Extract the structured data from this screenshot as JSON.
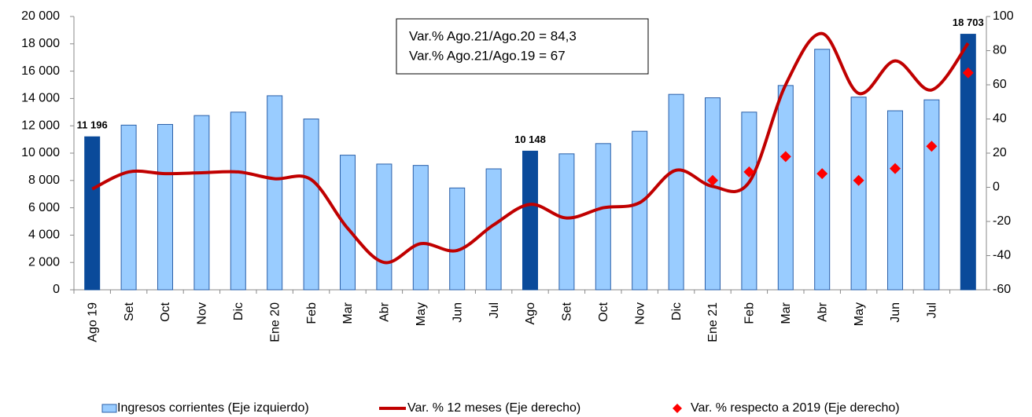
{
  "chart_data": {
    "type": "bar",
    "annotations": [
      "Var.% Ago.21/Ago.20 = 84,3",
      "Var.% Ago.21/Ago.19 = 67"
    ],
    "categories": [
      "Ago 19",
      "Set",
      "Oct",
      "Nov",
      "Dic",
      "Ene 20",
      "Feb",
      "Mar",
      "Abr",
      "May",
      "Jun",
      "Jul",
      "Ago",
      "Set",
      "Oct",
      "Nov",
      "Dic",
      "Ene 21",
      "Feb",
      "Mar",
      "Abr",
      "May",
      "Jun",
      "Jul",
      null
    ],
    "ylim": [
      0,
      20000
    ],
    "yticks": [
      {
        "value": 0,
        "label": "0"
      },
      {
        "value": 2000,
        "label": "2 000"
      },
      {
        "value": 4000,
        "label": "4 000"
      },
      {
        "value": 6000,
        "label": "6 000"
      },
      {
        "value": 8000,
        "label": "8 000"
      },
      {
        "value": 10000,
        "label": "10 000"
      },
      {
        "value": 12000,
        "label": "12 000"
      },
      {
        "value": 14000,
        "label": "14 000"
      },
      {
        "value": 16000,
        "label": "16 000"
      },
      {
        "value": 18000,
        "label": "18 000"
      },
      {
        "value": 20000,
        "label": "20 000"
      }
    ],
    "y2lim": [
      -60,
      100
    ],
    "y2ticks": [
      -60,
      -40,
      -20,
      0,
      20,
      40,
      60,
      80,
      100
    ],
    "series": [
      {
        "name": "Ingresos corrientes (Eje izquierdo)",
        "type": "bar",
        "color": "#99ccff",
        "colors": [
          "#0a4a9a",
          "#99ccff",
          "#99ccff",
          "#99ccff",
          "#99ccff",
          "#99ccff",
          "#99ccff",
          "#99ccff",
          "#99ccff",
          "#99ccff",
          "#99ccff",
          "#99ccff",
          "#0a4a9a",
          "#99ccff",
          "#99ccff",
          "#99ccff",
          "#99ccff",
          "#99ccff",
          "#99ccff",
          "#99ccff",
          "#99ccff",
          "#99ccff",
          "#99ccff",
          "#99ccff",
          "#0a4a9a"
        ],
        "values": [
          11196,
          12050,
          12100,
          12750,
          13000,
          14200,
          12500,
          9850,
          9200,
          9100,
          7450,
          8850,
          10148,
          9950,
          10700,
          11600,
          14300,
          14050,
          13000,
          14950,
          17600,
          14100,
          13100,
          13900,
          18703
        ],
        "value_labels": [
          "11 196",
          null,
          null,
          null,
          null,
          null,
          null,
          null,
          null,
          null,
          null,
          null,
          "10 148",
          null,
          null,
          null,
          null,
          null,
          null,
          null,
          null,
          null,
          null,
          null,
          "18 703"
        ]
      },
      {
        "name": "Var. % 12 meses (Eje derecho)",
        "type": "line",
        "axis": "y2",
        "color": "#c00000",
        "values": [
          -1,
          9,
          8,
          8.5,
          9,
          5,
          4.5,
          -24,
          -44,
          -33,
          -37,
          -22,
          -10,
          -18,
          -12,
          -9,
          10,
          0.5,
          3,
          60,
          90,
          55,
          74,
          57,
          84.3
        ]
      },
      {
        "name": "Var. % respecto a 2019 (Eje derecho)",
        "type": "scatter",
        "axis": "y2",
        "color": "#ff0000",
        "values": [
          null,
          null,
          null,
          null,
          null,
          null,
          null,
          null,
          null,
          null,
          null,
          null,
          null,
          null,
          null,
          null,
          null,
          4,
          9,
          18,
          8,
          4,
          11,
          24,
          67
        ]
      }
    ]
  }
}
